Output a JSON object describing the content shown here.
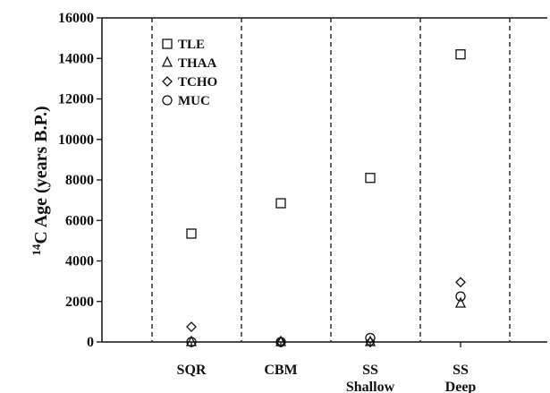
{
  "chart_data": {
    "type": "scatter",
    "title": "",
    "xlabel": "",
    "ylabel_sup": "14",
    "ylabel": "C Age (years B.P.)",
    "ylim": [
      0,
      16000
    ],
    "yticks": [
      "0",
      "2000",
      "4000",
      "6000",
      "8000",
      "10000",
      "12000",
      "14000",
      "16000"
    ],
    "grid": false,
    "legend_position": "top-left",
    "categories": [
      {
        "lines": [
          "SQR"
        ]
      },
      {
        "lines": [
          "CBM"
        ]
      },
      {
        "lines": [
          "SS",
          "Shallow"
        ]
      },
      {
        "lines": [
          "SS",
          "Deep"
        ]
      }
    ],
    "series": [
      {
        "name": "TLE",
        "marker": "square",
        "values": [
          5350,
          6850,
          8100,
          14200
        ]
      },
      {
        "name": "THAA",
        "marker": "triangle",
        "values": [
          0,
          0,
          0,
          1900
        ]
      },
      {
        "name": "TCHO",
        "marker": "diamond",
        "values": [
          750,
          0,
          0,
          2950
        ]
      },
      {
        "name": "MUC",
        "marker": "circle",
        "values": [
          0,
          0,
          200,
          2250
        ]
      }
    ]
  }
}
